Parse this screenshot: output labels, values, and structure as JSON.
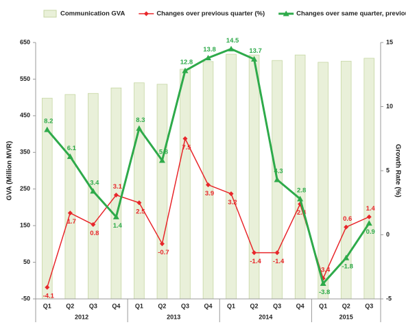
{
  "chart_data": {
    "type": "bar-line",
    "categories": [
      "Q1",
      "Q2",
      "Q3",
      "Q4",
      "Q1",
      "Q2",
      "Q3",
      "Q4",
      "Q1",
      "Q2",
      "Q3",
      "Q4",
      "Q1",
      "Q2",
      "Q3"
    ],
    "category_groups": [
      "2012",
      "2012",
      "2012",
      "2012",
      "2013",
      "2013",
      "2013",
      "2013",
      "2014",
      "2014",
      "2014",
      "2014",
      "2015",
      "2015",
      "2015"
    ],
    "ylabel": "GVA (Million MVR)",
    "y2label": "Growth Rate (%)",
    "ylim": [
      -50,
      650
    ],
    "yticks": [
      -50,
      50,
      150,
      250,
      350,
      450,
      550,
      650
    ],
    "y2lim": [
      -5,
      15
    ],
    "y2ticks": [
      -5,
      0,
      5,
      10,
      15
    ],
    "grid": false,
    "legend": "top",
    "series": [
      {
        "name": "Communication GVA",
        "type": "bar",
        "color": "#e9f0d9",
        "values": [
          498,
          508,
          511,
          526,
          540,
          536,
          577,
          598,
          618,
          616,
          601,
          616,
          596,
          599,
          607
        ]
      },
      {
        "name": "Changes over previous quarter (%)",
        "type": "line",
        "axis": "y2",
        "color": "#e8262a",
        "values": [
          -4.1,
          1.7,
          0.8,
          3.1,
          2.5,
          -0.7,
          7.5,
          3.9,
          3.2,
          -1.4,
          -1.4,
          2.4,
          -3.4,
          0.6,
          1.4
        ]
      },
      {
        "name": "Changes over same quarter, previous year  (%)",
        "type": "line",
        "axis": "y2",
        "color": "#2eaa4a",
        "values": [
          8.2,
          6.1,
          3.4,
          1.4,
          8.3,
          5.8,
          12.8,
          13.8,
          14.5,
          13.7,
          4.3,
          2.8,
          -3.8,
          -1.8,
          0.9
        ]
      }
    ]
  }
}
